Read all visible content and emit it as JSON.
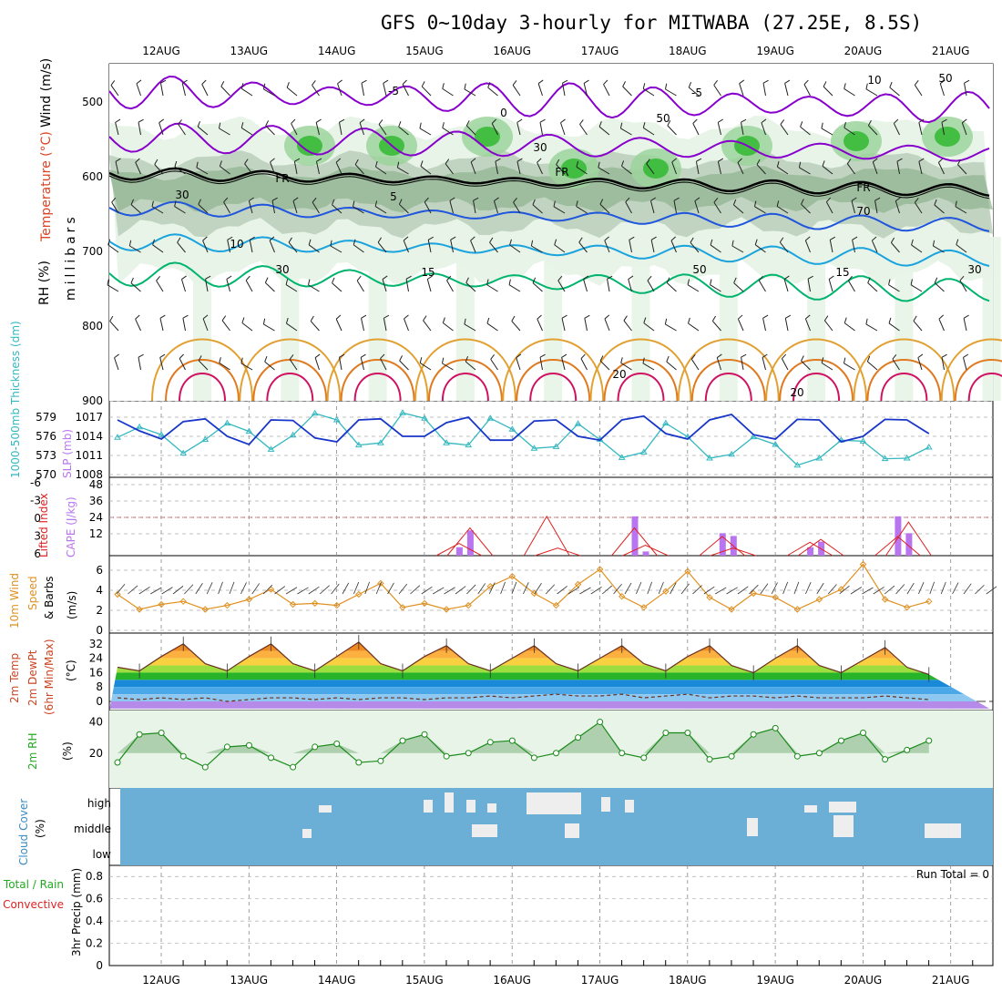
{
  "title": "GFS 0~10day 3-hourly for MITWABA (27.25E, 8.5S)",
  "colors": {
    "rh_light": "#e8f4e8",
    "rh_mid": "#9cd39c",
    "rh_dark": "#29b629",
    "rh_grey": "#c7d6c7",
    "t_purple": "#8800cc",
    "t_freeze": "#000000",
    "t_blue": "#2055dd",
    "t_lightblue": "#1aa3dd",
    "t_green": "#00b46e",
    "t_orange": "#e2a030",
    "t_red": "#d01060",
    "slp": "#1836c8",
    "thick": "#33b8c0",
    "cape": "#b975f0",
    "li": "#dd2222",
    "wind": "#e09020",
    "rh2m_fill": "#aed0ae",
    "cloud": "#6baed6",
    "cloud_gap": "#eeeeee",
    "precip": "#22aa22"
  },
  "xaxis": {
    "days": [
      "12AUG",
      "13AUG",
      "14AUG",
      "15AUG",
      "16AUG",
      "17AUG",
      "18AUG",
      "19AUG",
      "20AUG",
      "21AUG"
    ]
  },
  "panels": {
    "upper": {
      "legend": [
        "Wind (m/s)",
        "Temperature (°C)",
        "RH (%)",
        "millibars"
      ],
      "y_ticks": [
        "500",
        "600",
        "700",
        "800",
        "900"
      ],
      "contour_labels": [
        "-5",
        "0",
        "-5",
        "FR",
        "FR",
        "FR",
        "5",
        "10",
        "15",
        "15",
        "20",
        "20",
        "10",
        "30",
        "30",
        "30",
        "50",
        "50",
        "50",
        "70",
        "30"
      ]
    },
    "thickness": {
      "left_label": "1000-500mb Thickness (dm)",
      "right_label": "SLP (mb)",
      "thick_ticks": [
        "579",
        "576",
        "573",
        "570"
      ],
      "slp_ticks": [
        "1017",
        "1014",
        "1011",
        "1008"
      ]
    },
    "cape": {
      "left_label": "Lifted Index",
      "right_label": "CAPE (J/kg)",
      "li_ticks": [
        "-6",
        "-3",
        "0",
        "3",
        "6"
      ],
      "cape_ticks": [
        "48",
        "36",
        "24",
        "12"
      ]
    },
    "wind": {
      "left_label": "10m Wind",
      "left_label2": "Speed",
      "left_label3": "& Barbs",
      "unit": "(m/s)",
      "y_ticks": [
        "6",
        "4",
        "2",
        "0"
      ]
    },
    "temp": {
      "label1": "2m Temp",
      "label2": "2m DewPt",
      "label3": "(6hr Min/Max)",
      "unit": "(°C)",
      "y_ticks": [
        "32",
        "24",
        "16",
        "8",
        "0"
      ]
    },
    "rh": {
      "label": "2m RH",
      "unit": "(%)",
      "y_ticks": [
        "40",
        "20"
      ]
    },
    "cloud": {
      "label": "Cloud Cover",
      "unit": "(%)",
      "levels": [
        "high",
        "middle",
        "low"
      ]
    },
    "precip": {
      "label1": "Total / Rain",
      "label2": "Convective",
      "label3": "3hr Precip (mm)",
      "run_total": "Run Total = 0",
      "y_ticks": [
        "0.8",
        "0.6",
        "0.4",
        "0.2",
        "0"
      ]
    }
  },
  "chart_data": [
    {
      "type": "line",
      "title": "Thickness 1000-500mb (dm) and SLP (mb)",
      "x": [
        "12AUG00",
        "12AUG06",
        "12AUG12",
        "12AUG18",
        "13AUG00",
        "13AUG06",
        "13AUG12",
        "13AUG18",
        "14AUG00",
        "14AUG06",
        "14AUG12",
        "14AUG18",
        "15AUG00",
        "15AUG06",
        "15AUG12",
        "15AUG18",
        "16AUG00",
        "16AUG06",
        "16AUG12",
        "16AUG18",
        "17AUG00",
        "17AUG06",
        "17AUG12",
        "17AUG18",
        "18AUG00",
        "18AUG06",
        "18AUG12",
        "18AUG18",
        "19AUG00",
        "19AUG06",
        "19AUG12",
        "19AUG18",
        "20AUG00",
        "20AUG06",
        "20AUG12",
        "20AUG18",
        "21AUG00",
        "21AUG06"
      ],
      "series": [
        {
          "name": "SLP",
          "values": [
            1016.5,
            1014.5,
            1013.0,
            1016.2,
            1016.7,
            1013.5,
            1012.0,
            1016.5,
            1016.4,
            1013.2,
            1012.5,
            1016.5,
            1016.7,
            1013.5,
            1013.5,
            1016.0,
            1017.0,
            1012.8,
            1012.8,
            1016.3,
            1016.5,
            1013.5,
            1012.8,
            1016.5,
            1017.2,
            1014.0,
            1013.0,
            1016.5,
            1017.5,
            1013.8,
            1013.0,
            1016.6,
            1016.5,
            1012.5,
            1013.5,
            1016.6,
            1016.5,
            1014.0
          ]
        },
        {
          "name": "Thickness",
          "values": [
            575.3,
            577.2,
            575.8,
            572.4,
            574.9,
            577.9,
            576.4,
            573.1,
            575.7,
            579.7,
            578.5,
            573.9,
            574.3,
            579.8,
            578.8,
            574.3,
            573.9,
            578.8,
            576.8,
            573.3,
            573.6,
            577.8,
            574.9,
            571.6,
            572.6,
            577.9,
            575.4,
            571.5,
            572.2,
            575.4,
            574.0,
            570.2,
            571.5,
            574.8,
            574.6,
            571.4,
            571.5,
            573.5
          ]
        }
      ]
    },
    {
      "type": "bar",
      "title": "CAPE (J/kg) and Lifted Index",
      "x": [
        "15AUG12",
        "15AUG15",
        "16AUG12",
        "16AUG15",
        "17AUG12",
        "17AUG15",
        "18AUG12",
        "18AUG15",
        "19AUG12",
        "19AUG15",
        "20AUG12",
        "20AUG15"
      ],
      "series": [
        {
          "name": "CAPE",
          "values": [
            6,
            18,
            0,
            0,
            28,
            3,
            16,
            14,
            6,
            10,
            28,
            16
          ]
        },
        {
          "name": "LI",
          "values": [
            4.2,
            1.5,
            -0.5,
            5,
            1.5,
            4.5,
            3.0,
            5.0,
            4.0,
            3.5,
            3.0,
            0.5
          ]
        }
      ],
      "ylim_cape": [
        0,
        48
      ],
      "ylim_li": [
        6,
        -6
      ]
    },
    {
      "type": "line",
      "title": "10m Wind Speed (m/s)",
      "x": [
        "12AUG00",
        "12AUG06",
        "12AUG12",
        "12AUG18",
        "13AUG00",
        "13AUG06",
        "13AUG12",
        "13AUG18",
        "14AUG00",
        "14AUG06",
        "14AUG12",
        "14AUG18",
        "15AUG00",
        "15AUG06",
        "15AUG12",
        "15AUG18",
        "16AUG00",
        "16AUG06",
        "16AUG12",
        "16AUG18",
        "17AUG00",
        "17AUG06",
        "17AUG12",
        "17AUG18",
        "18AUG00",
        "18AUG06",
        "18AUG12",
        "18AUG18",
        "19AUG00",
        "19AUG06",
        "19AUG12",
        "19AUG18",
        "20AUG00",
        "20AUG06",
        "20AUG12",
        "20AUG18",
        "21AUG00",
        "21AUG06"
      ],
      "series": [
        {
          "name": "Wind speed",
          "values": [
            3.5,
            2.0,
            2.5,
            2.8,
            2.0,
            2.4,
            3.0,
            4.0,
            2.5,
            2.6,
            2.4,
            3.5,
            4.6,
            2.2,
            2.6,
            2.0,
            2.4,
            4.3,
            5.3,
            3.6,
            2.4,
            4.5,
            6.0,
            3.3,
            2.2,
            3.8,
            5.8,
            3.2,
            2.0,
            3.6,
            3.2,
            2.0,
            3.0,
            4.0,
            6.5,
            3.0,
            2.2,
            2.8
          ]
        }
      ],
      "ylim": [
        0,
        7
      ]
    },
    {
      "type": "area",
      "title": "2m Temp (°C)",
      "x": [
        "12AUG00",
        "12AUG06",
        "12AUG12",
        "12AUG18",
        "13AUG00",
        "13AUG06",
        "13AUG12",
        "13AUG18",
        "14AUG00",
        "14AUG06",
        "14AUG12",
        "14AUG18",
        "15AUG00",
        "15AUG06",
        "15AUG12",
        "15AUG18",
        "16AUG00",
        "16AUG06",
        "16AUG12",
        "16AUG18",
        "17AUG00",
        "17AUG06",
        "17AUG12",
        "17AUG18",
        "18AUG00",
        "18AUG06",
        "18AUG12",
        "18AUG18",
        "19AUG00",
        "19AUG06",
        "19AUG12",
        "19AUG18",
        "20AUG00",
        "20AUG06",
        "20AUG12",
        "20AUG18",
        "21AUG00",
        "21AUG06"
      ],
      "series": [
        {
          "name": "Temperature",
          "values": [
            19,
            17,
            25,
            32,
            21,
            17,
            25,
            32,
            21,
            17,
            25,
            33,
            21,
            17,
            25,
            31,
            21,
            17,
            24,
            31,
            21,
            17,
            24,
            31,
            21,
            17,
            25,
            31,
            20,
            16,
            24,
            31,
            20,
            16,
            23,
            30,
            19,
            15
          ]
        },
        {
          "name": "DewPt",
          "values": [
            2,
            1,
            2,
            1,
            2,
            0,
            1,
            2,
            2,
            1,
            2,
            1,
            2,
            2,
            1,
            2,
            2,
            3,
            2,
            3,
            4,
            3,
            3,
            4,
            2,
            3,
            4,
            2,
            3,
            3,
            2,
            3,
            2,
            2,
            2,
            3,
            2,
            1
          ]
        }
      ],
      "ylim": [
        -4,
        36
      ]
    },
    {
      "type": "area",
      "title": "2m RH (%)",
      "x": [
        "12AUG00",
        "12AUG06",
        "12AUG12",
        "12AUG18",
        "13AUG00",
        "13AUG06",
        "13AUG12",
        "13AUG18",
        "14AUG00",
        "14AUG06",
        "14AUG12",
        "14AUG18",
        "15AUG00",
        "15AUG06",
        "15AUG12",
        "15AUG18",
        "16AUG00",
        "16AUG06",
        "16AUG12",
        "16AUG18",
        "17AUG00",
        "17AUG06",
        "17AUG12",
        "17AUG18",
        "18AUG00",
        "18AUG06",
        "18AUG12",
        "18AUG18",
        "19AUG00",
        "19AUG06",
        "19AUG12",
        "19AUG18",
        "20AUG00",
        "20AUG06",
        "20AUG12",
        "20AUG18",
        "21AUG00",
        "21AUG06"
      ],
      "series": [
        {
          "name": "RH",
          "values": [
            14,
            32,
            33,
            18,
            11,
            24,
            25,
            17,
            11,
            24,
            26,
            14,
            15,
            28,
            32,
            18,
            20,
            27,
            28,
            17,
            20,
            30,
            40,
            20,
            17,
            33,
            33,
            16,
            18,
            32,
            36,
            18,
            20,
            28,
            33,
            16,
            22,
            28
          ]
        }
      ],
      "ylim": [
        0,
        45
      ]
    },
    {
      "type": "bar",
      "title": "3hr Precip (mm)",
      "series": [
        {
          "name": "Precip",
          "values": []
        }
      ],
      "ylim": [
        0,
        0.9
      ]
    }
  ]
}
